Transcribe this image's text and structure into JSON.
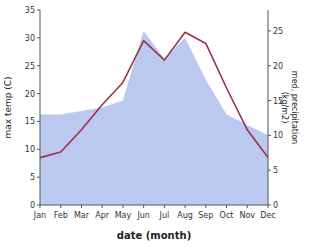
{
  "chart_data": {
    "type": "line",
    "xlabel": "date (month)",
    "ylabel": "max temp (C)",
    "y2label": "med. precipitation\n(kg/m2)",
    "categories": [
      "Jan",
      "Feb",
      "Mar",
      "Apr",
      "May",
      "Jun",
      "Jul",
      "Aug",
      "Sep",
      "Oct",
      "Nov",
      "Dec"
    ],
    "series": [
      {
        "type": "line",
        "color": "#993344",
        "values": [
          8.5,
          9.5,
          13.5,
          18.0,
          22.0,
          29.5,
          26.0,
          31.0,
          29.0,
          21.0,
          13.5,
          8.5
        ]
      },
      {
        "type": "area",
        "axis": "y2",
        "color": "#aabbee",
        "values": [
          13.0,
          13.0,
          13.5,
          14.0,
          15.0,
          25.0,
          21.0,
          24.0,
          18.0,
          13.0,
          11.5,
          10.0
        ]
      }
    ],
    "ylim": [
      0,
      35
    ],
    "yticks": [
      0,
      5,
      10,
      15,
      20,
      25,
      30,
      35
    ],
    "y2lim": [
      0,
      28
    ],
    "y2ticks": [
      0,
      5,
      10,
      15,
      20,
      25
    ],
    "grid": false
  }
}
